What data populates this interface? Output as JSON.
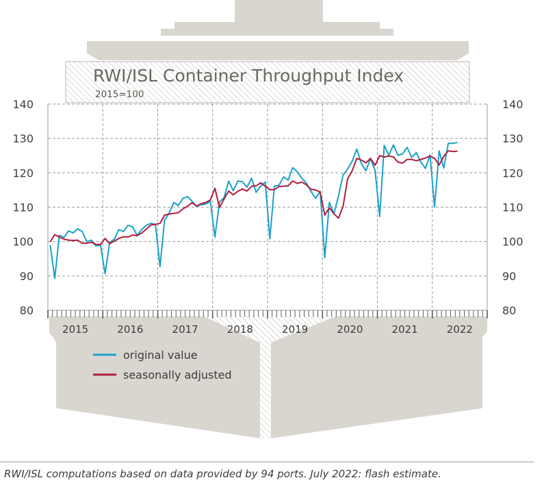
{
  "chart_data": {
    "type": "line",
    "title": "RWI/ISL Container Throughput Index",
    "subtitle": "2015=100",
    "ylim": [
      80,
      140
    ],
    "yticks": [
      80,
      90,
      100,
      110,
      120,
      130,
      140
    ],
    "x_start": "2015-01",
    "x_end": "2022-07",
    "year_labels": [
      "2015",
      "2016",
      "2017",
      "2018",
      "2019",
      "2020",
      "2021",
      "2022"
    ],
    "grid": true,
    "legend_placement": "bottom-left",
    "series": [
      {
        "name": "original value",
        "color": "#19a0c8",
        "values": [
          99.0,
          89.3,
          101.8,
          101.2,
          103.1,
          102.5,
          103.7,
          102.9,
          100.0,
          100.4,
          98.7,
          99.0,
          90.6,
          99.8,
          100.6,
          103.5,
          102.9,
          104.7,
          104.3,
          101.8,
          103.5,
          104.7,
          105.3,
          105.0,
          92.7,
          106.3,
          108.3,
          111.4,
          110.5,
          112.5,
          113.1,
          111.7,
          110.2,
          110.7,
          110.9,
          111.7,
          101.3,
          111.5,
          112.8,
          117.6,
          114.8,
          117.6,
          117.4,
          115.8,
          118.4,
          114.3,
          116.1,
          117.3,
          100.8,
          116.1,
          116.4,
          118.8,
          117.9,
          121.5,
          120.3,
          118.4,
          117.0,
          114.6,
          112.6,
          114.6,
          95.3,
          111.4,
          108.0,
          113.3,
          119.4,
          121.1,
          123.4,
          126.9,
          122.7,
          120.6,
          124.2,
          120.7,
          107.3,
          128.0,
          125.1,
          128.1,
          125.1,
          125.5,
          127.4,
          124.5,
          125.9,
          123.1,
          121.3,
          125.2,
          110.1,
          126.4,
          121.4,
          128.6,
          128.6,
          128.8
        ]
      },
      {
        "name": "seasonally adjusted",
        "color": "#b01c3c",
        "values": [
          99.9,
          102.0,
          101.3,
          100.7,
          100.4,
          100.3,
          100.4,
          99.5,
          99.5,
          99.8,
          99.2,
          99.1,
          100.9,
          99.4,
          100.1,
          100.9,
          101.4,
          101.3,
          101.9,
          101.7,
          102.5,
          103.6,
          104.8,
          105.0,
          105.3,
          107.7,
          108.0,
          108.2,
          108.4,
          109.5,
          110.3,
          111.3,
          110.3,
          111.0,
          111.4,
          112.1,
          115.5,
          109.9,
          112.4,
          114.7,
          113.6,
          114.6,
          115.3,
          114.7,
          116.1,
          116.2,
          117.1,
          116.1,
          115.1,
          115.1,
          116.0,
          116.1,
          116.2,
          117.6,
          116.9,
          117.3,
          116.5,
          115.2,
          115.0,
          114.4,
          107.7,
          109.8,
          108.1,
          106.8,
          110.2,
          118.3,
          120.6,
          124.2,
          123.7,
          122.9,
          124.2,
          122.2,
          125.0,
          124.6,
          124.9,
          124.6,
          123.1,
          122.8,
          123.9,
          123.9,
          123.5,
          123.9,
          124.3,
          124.9,
          124.2,
          122.3,
          124.8,
          126.4,
          126.2,
          126.3
        ]
      }
    ]
  },
  "footer": {
    "note": "RWI/ISL computations based on data provided by 94 ports. July 2022: flash estimate."
  }
}
